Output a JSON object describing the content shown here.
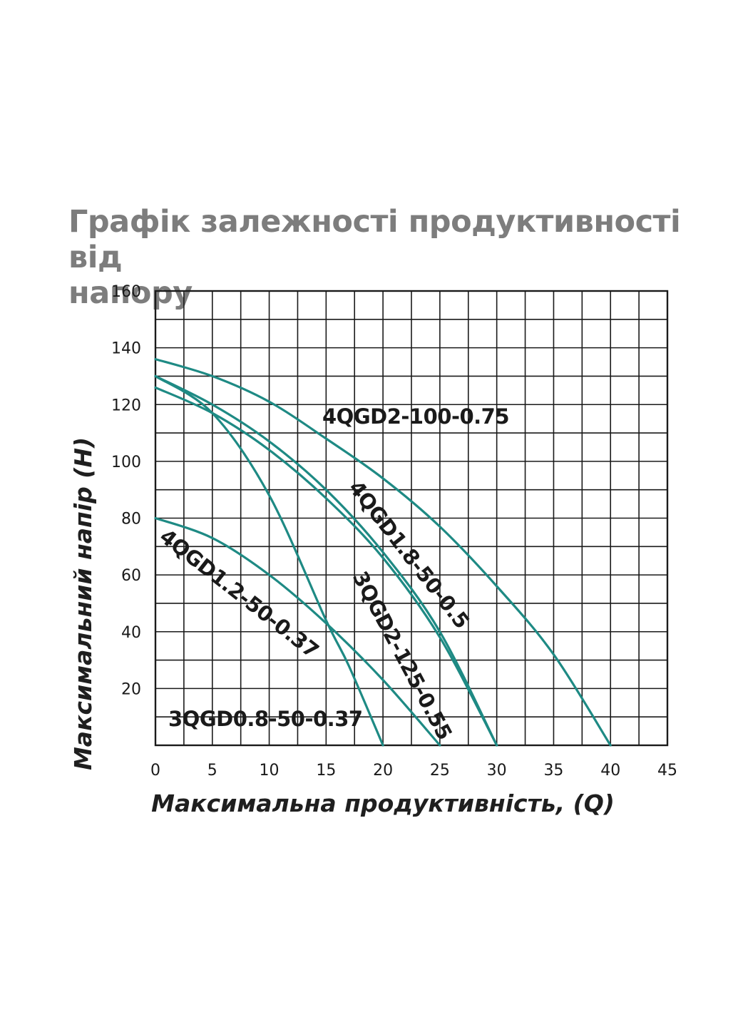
{
  "title": "Графік залежності продуктивності від\nнапору",
  "chart_data": {
    "type": "line",
    "title": "Графік залежності продуктивності від напору",
    "xlabel": "Максимальна продуктивність, (Q)",
    "ylabel": "Максимальний напір (H)",
    "xlim": [
      0,
      45
    ],
    "ylim": [
      0,
      160
    ],
    "x_ticks": [
      0,
      5,
      10,
      15,
      20,
      25,
      30,
      35,
      40,
      45
    ],
    "y_ticks": [
      20,
      40,
      60,
      80,
      100,
      120,
      140,
      160
    ],
    "grid": true,
    "grid_x_step": 2.5,
    "grid_y_step": 10,
    "curve_color": "#1e8a84",
    "series": [
      {
        "name": "3QGD0.8-50-0.37",
        "x": [
          0,
          5,
          10,
          15,
          17,
          20
        ],
        "y": [
          130,
          117,
          88,
          44,
          28,
          0
        ]
      },
      {
        "name": "4QGD1.2-50-0.37",
        "x": [
          0,
          5,
          10,
          15,
          20,
          25
        ],
        "y": [
          80,
          73,
          60,
          43,
          23,
          0
        ]
      },
      {
        "name": "4QGD1.8-50-0.5",
        "x": [
          0,
          5,
          10,
          15,
          20,
          25,
          30
        ],
        "y": [
          130,
          120,
          107,
          90,
          68,
          40,
          0
        ]
      },
      {
        "name": "3QGD2-125-0.55",
        "x": [
          0,
          5,
          10,
          15,
          20,
          25,
          30
        ],
        "y": [
          126,
          117,
          104,
          87,
          66,
          38,
          0
        ]
      },
      {
        "name": "4QGD2-100-0.75",
        "x": [
          0,
          5,
          10,
          15,
          20,
          25,
          30,
          35,
          40
        ],
        "y": [
          136,
          130,
          121,
          108,
          94,
          77,
          56,
          32,
          0
        ]
      }
    ]
  }
}
